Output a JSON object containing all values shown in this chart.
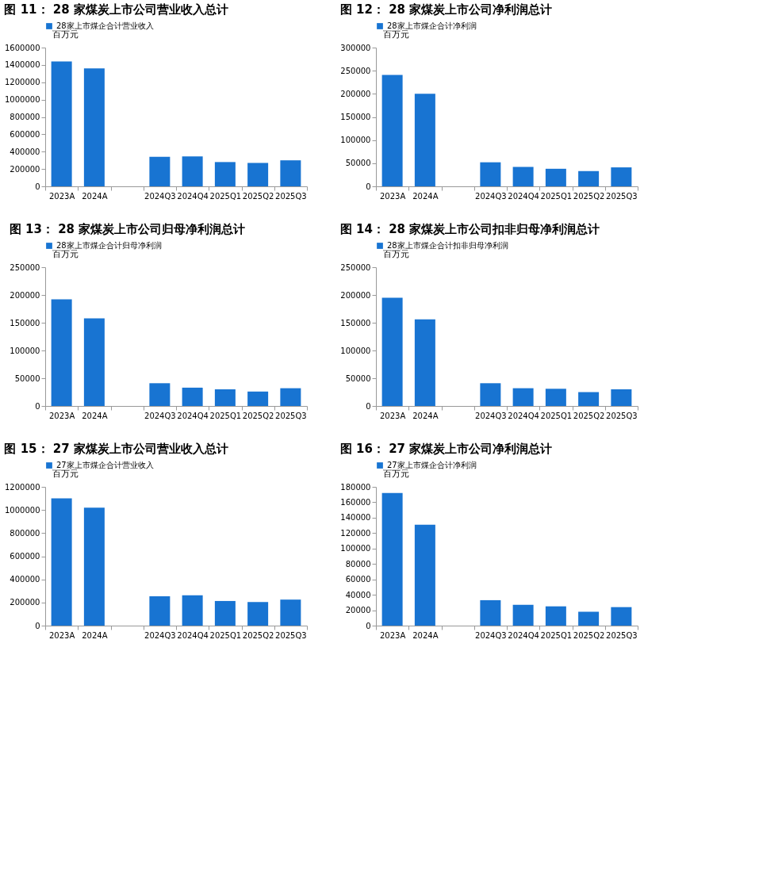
{
  "chart_data": [
    {
      "type": "bar",
      "title": "图 11： 28 家煤炭上市公司营业收入总计",
      "ylabel": "百万元",
      "categories": [
        "2023A",
        "2024A",
        null,
        "2024Q3",
        "2024Q4",
        "2025Q1",
        "2025Q2",
        "2025Q3"
      ],
      "series": [
        {
          "name": "28家上市煤企合计营业收入",
          "color": "#1874d2",
          "values": [
            1440000,
            1360000,
            null,
            340000,
            345000,
            280000,
            270000,
            300000
          ]
        }
      ],
      "ylim": [
        0,
        1600000
      ],
      "yticks": [
        0,
        200000,
        400000,
        600000,
        800000,
        1000000,
        1200000,
        1400000,
        1600000
      ],
      "grid": false,
      "legend": "top"
    },
    {
      "type": "bar",
      "title": "图 12： 28 家煤炭上市公司净利润总计",
      "ylabel": "百万元",
      "categories": [
        "2023A",
        "2024A",
        null,
        "2024Q3",
        "2024Q4",
        "2025Q1",
        "2025Q2",
        "2025Q3"
      ],
      "series": [
        {
          "name": "28家上市煤企合计净利润",
          "color": "#1874d2",
          "values": [
            241000,
            200000,
            null,
            52000,
            42000,
            38000,
            33000,
            41000
          ]
        }
      ],
      "ylim": [
        0,
        300000
      ],
      "yticks": [
        0,
        50000,
        100000,
        150000,
        200000,
        250000,
        300000
      ],
      "grid": false,
      "legend": "top"
    },
    {
      "type": "bar",
      "title": "图 13： 28 家煤炭上市公司归母净利润总计",
      "ylabel": "百万元",
      "categories": [
        "2023A",
        "2024A",
        null,
        "2024Q3",
        "2024Q4",
        "2025Q1",
        "2025Q2",
        "2025Q3"
      ],
      "series": [
        {
          "name": "28家上市煤企合计归母净利润",
          "color": "#1874d2",
          "values": [
            192000,
            158000,
            null,
            41000,
            33000,
            30000,
            26000,
            32000
          ]
        }
      ],
      "ylim": [
        0,
        250000
      ],
      "yticks": [
        0,
        50000,
        100000,
        150000,
        200000,
        250000
      ],
      "grid": false,
      "legend": "top"
    },
    {
      "type": "bar",
      "title": "图 14： 28 家煤炭上市公司扣非归母净利润总计",
      "ylabel": "百万元",
      "categories": [
        "2023A",
        "2024A",
        null,
        "2024Q3",
        "2024Q4",
        "2025Q1",
        "2025Q2",
        "2025Q3"
      ],
      "series": [
        {
          "name": "28家上市煤企合计扣非归母净利润",
          "color": "#1874d2",
          "values": [
            195000,
            156000,
            null,
            41000,
            32000,
            31000,
            25000,
            30000
          ]
        }
      ],
      "ylim": [
        0,
        250000
      ],
      "yticks": [
        0,
        50000,
        100000,
        150000,
        200000,
        250000
      ],
      "grid": false,
      "legend": "top"
    },
    {
      "type": "bar",
      "title": "图 15： 27 家煤炭上市公司营业收入总计",
      "ylabel": "百万元",
      "categories": [
        "2023A",
        "2024A",
        null,
        "2024Q3",
        "2024Q4",
        "2025Q1",
        "2025Q2",
        "2025Q3"
      ],
      "series": [
        {
          "name": "27家上市煤企合计营业收入",
          "color": "#1874d2",
          "values": [
            1100000,
            1020000,
            null,
            253000,
            263000,
            213000,
            204000,
            225000
          ]
        }
      ],
      "ylim": [
        0,
        1200000
      ],
      "yticks": [
        0,
        200000,
        400000,
        600000,
        800000,
        1000000,
        1200000
      ],
      "grid": false,
      "legend": "top"
    },
    {
      "type": "bar",
      "title": "图 16： 27 家煤炭上市公司净利润总计",
      "ylabel": "百万元",
      "categories": [
        "2023A",
        "2024A",
        null,
        "2024Q3",
        "2024Q4",
        "2025Q1",
        "2025Q2",
        "2025Q3"
      ],
      "series": [
        {
          "name": "27家上市煤企合计净利润",
          "color": "#1874d2",
          "values": [
            172000,
            131000,
            null,
            33000,
            27000,
            25000,
            18000,
            24000
          ]
        }
      ],
      "ylim": [
        0,
        180000
      ],
      "yticks": [
        0,
        20000,
        40000,
        60000,
        80000,
        100000,
        120000,
        140000,
        160000,
        180000
      ],
      "grid": false,
      "legend": "top"
    }
  ]
}
